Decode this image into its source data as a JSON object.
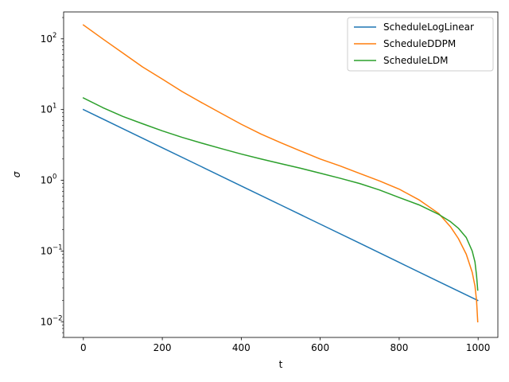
{
  "chart_data": {
    "type": "line",
    "title": "",
    "xlabel": "t",
    "ylabel": "σ",
    "yscale": "log",
    "xlim": [
      -50,
      1050
    ],
    "ylim": [
      0.006,
      240
    ],
    "xticks": [
      0,
      200,
      400,
      600,
      800,
      1000
    ],
    "xtick_labels": [
      "0",
      "200",
      "400",
      "600",
      "800",
      "1000"
    ],
    "yticks": [
      0.01,
      0.1,
      1,
      10,
      100
    ],
    "ytick_labels": [
      {
        "base": "10",
        "exp": "−2"
      },
      {
        "base": "10",
        "exp": "−1"
      },
      {
        "base": "10",
        "exp": "0"
      },
      {
        "base": "10",
        "exp": "1"
      },
      {
        "base": "10",
        "exp": "2"
      }
    ],
    "grid": false,
    "legend_position": "top-right",
    "series": [
      {
        "name": "ScheduleLogLinear",
        "color": "#1f77b4",
        "x": [
          0,
          100,
          200,
          300,
          400,
          500,
          600,
          700,
          800,
          900,
          999
        ],
        "y": [
          10.0,
          5.37,
          2.88,
          1.55,
          0.83,
          0.447,
          0.24,
          0.129,
          0.069,
          0.037,
          0.02
        ]
      },
      {
        "name": "ScheduleDDPM",
        "color": "#ff7f0e",
        "x": [
          0,
          50,
          100,
          150,
          200,
          250,
          300,
          350,
          400,
          450,
          500,
          550,
          600,
          650,
          700,
          750,
          800,
          850,
          900,
          930,
          950,
          970,
          985,
          992,
          996,
          999
        ],
        "y": [
          157,
          99,
          63,
          40,
          27,
          18,
          12.5,
          8.8,
          6.2,
          4.5,
          3.4,
          2.6,
          2.0,
          1.6,
          1.25,
          0.98,
          0.75,
          0.53,
          0.34,
          0.22,
          0.15,
          0.09,
          0.05,
          0.032,
          0.02,
          0.01
        ]
      },
      {
        "name": "ScheduleLDM",
        "color": "#2ca02c",
        "x": [
          0,
          50,
          100,
          150,
          200,
          250,
          300,
          350,
          400,
          450,
          500,
          550,
          600,
          650,
          700,
          750,
          800,
          850,
          900,
          930,
          950,
          970,
          985,
          992,
          996,
          999
        ],
        "y": [
          14.6,
          10.6,
          8.0,
          6.3,
          5.0,
          4.05,
          3.35,
          2.8,
          2.35,
          2.0,
          1.72,
          1.48,
          1.26,
          1.07,
          0.9,
          0.73,
          0.57,
          0.45,
          0.33,
          0.26,
          0.21,
          0.155,
          0.1,
          0.07,
          0.045,
          0.028
        ]
      }
    ]
  }
}
